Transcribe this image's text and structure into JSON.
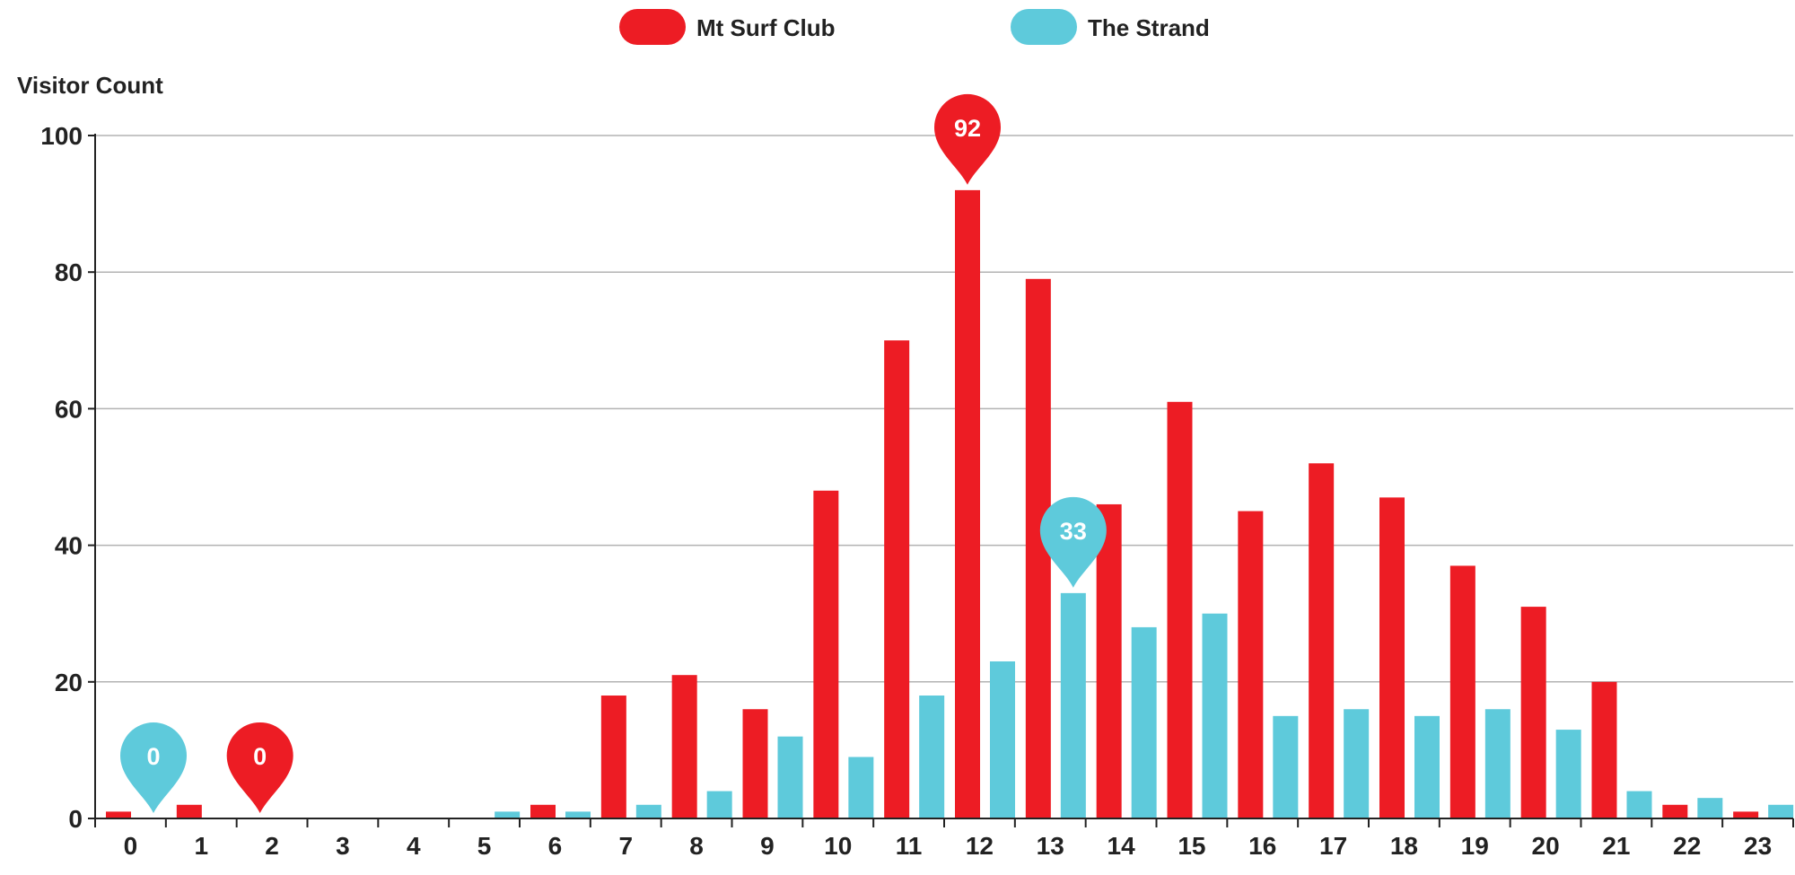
{
  "chart_data": {
    "type": "bar",
    "title": "",
    "xlabel": "",
    "ylabel": "Visitor Count",
    "ylim": [
      0,
      100
    ],
    "yticks": [
      0,
      20,
      40,
      60,
      80,
      100
    ],
    "grid": true,
    "legend_position": "top-center",
    "categories": [
      "0",
      "1",
      "2",
      "3",
      "4",
      "5",
      "6",
      "7",
      "8",
      "9",
      "10",
      "11",
      "12",
      "13",
      "14",
      "15",
      "16",
      "17",
      "18",
      "19",
      "20",
      "21",
      "22",
      "23"
    ],
    "series": [
      {
        "name": "Mt Surf Club",
        "color": "#ed1c24",
        "values": [
          1,
          2,
          0,
          0,
          0,
          0,
          2,
          18,
          21,
          16,
          48,
          70,
          92,
          79,
          46,
          61,
          45,
          52,
          47,
          37,
          31,
          20,
          2,
          1
        ]
      },
      {
        "name": "The Strand",
        "color": "#5ecadb",
        "values": [
          0,
          0,
          0,
          0,
          0,
          1,
          1,
          2,
          4,
          12,
          9,
          18,
          23,
          33,
          28,
          30,
          15,
          16,
          15,
          16,
          13,
          4,
          3,
          2
        ]
      }
    ],
    "annotations": [
      {
        "series": 1,
        "category": "0",
        "label": "0"
      },
      {
        "series": 0,
        "category": "2",
        "label": "0"
      },
      {
        "series": 0,
        "category": "12",
        "label": "92"
      },
      {
        "series": 1,
        "category": "13",
        "label": "33"
      }
    ]
  }
}
